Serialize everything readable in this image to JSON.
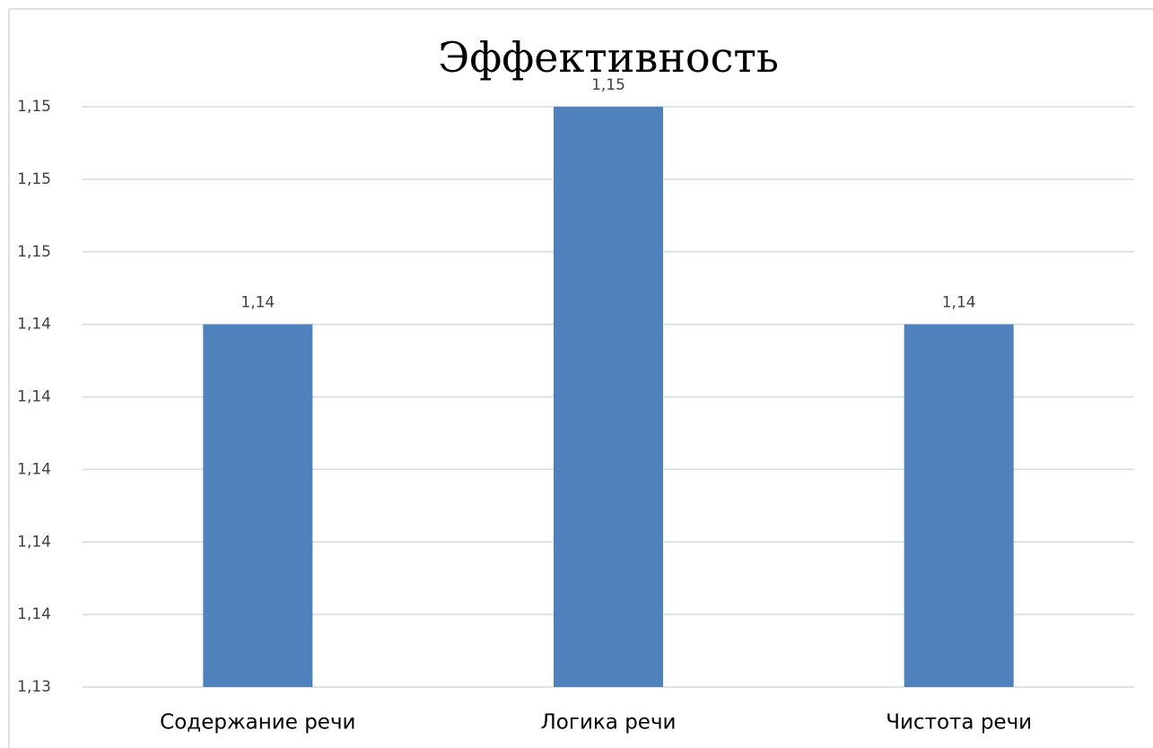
{
  "chart_data": {
    "type": "bar",
    "title": "Эффективность",
    "categories": [
      "Содержание речи",
      "Логика речи",
      "Чистота речи"
    ],
    "values": [
      1.144,
      1.15,
      1.144
    ],
    "value_labels": [
      "1,14",
      "1,15",
      "1,14"
    ],
    "color": "#4f81bd",
    "ylim": [
      1.134,
      1.15
    ],
    "yticks": [
      {
        "value": 1.134,
        "label": "1,13"
      },
      {
        "value": 1.136,
        "label": "1,14"
      },
      {
        "value": 1.138,
        "label": "1,14"
      },
      {
        "value": 1.14,
        "label": "1,14"
      },
      {
        "value": 1.142,
        "label": "1,14"
      },
      {
        "value": 1.144,
        "label": "1,14"
      },
      {
        "value": 1.146,
        "label": "1,15"
      },
      {
        "value": 1.148,
        "label": "1,15"
      },
      {
        "value": 1.15,
        "label": "1,15"
      }
    ],
    "grid": true
  }
}
